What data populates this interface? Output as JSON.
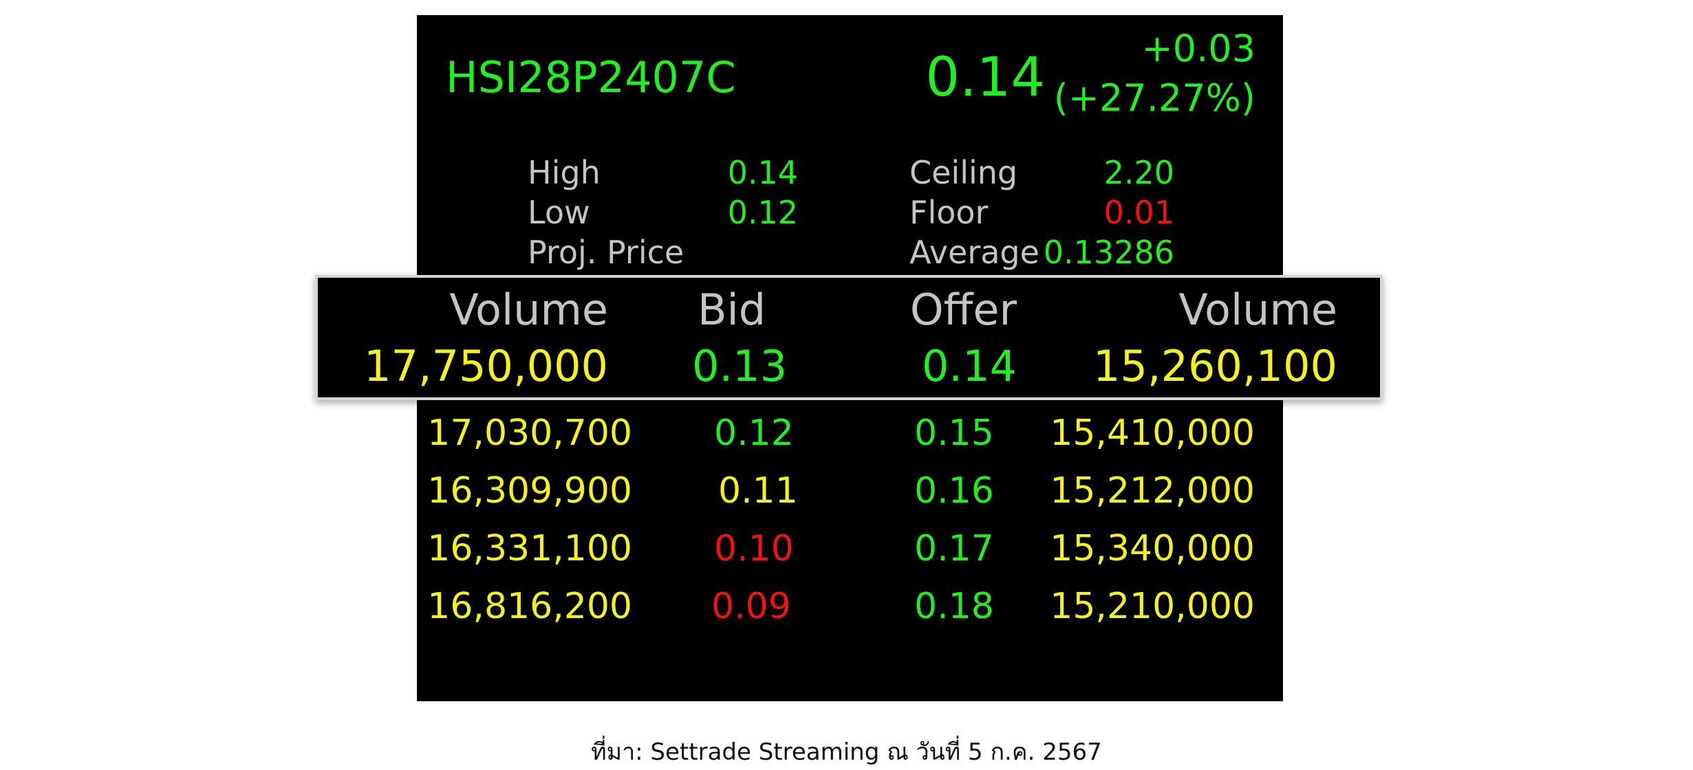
{
  "quote": {
    "symbol": "HSI28P2407C",
    "last": "0.14",
    "change": "+0.03",
    "change_pct": "(+27.27%)"
  },
  "stats": {
    "high_label": "High",
    "high_value": "0.14",
    "low_label": "Low",
    "low_value": "0.12",
    "proj_label": "Proj. Price",
    "ceiling_label": "Ceiling",
    "ceiling_value": "2.20",
    "floor_label": "Floor",
    "floor_value": "0.01",
    "average_label": "Average",
    "average_value": "0.13286"
  },
  "orderbook": {
    "headers": {
      "bid_volume": "Volume",
      "bid": "Bid",
      "offer": "Offer",
      "offer_volume": "Volume"
    },
    "best": {
      "bid_volume": "17,750,000",
      "bid": "0.13",
      "offer": "0.14",
      "offer_volume": "15,260,100"
    },
    "rows": [
      {
        "bid_volume": "17,030,700",
        "bid": "0.12",
        "offer": "0.15",
        "offer_volume": "15,410,000"
      },
      {
        "bid_volume": "16,309,900",
        "bid": "0.11",
        "offer": "0.16",
        "offer_volume": "15,212,000"
      },
      {
        "bid_volume": "16,331,100",
        "bid": "0.10",
        "offer": "0.17",
        "offer_volume": "15,340,000"
      },
      {
        "bid_volume": "16,816,200",
        "bid": "0.09",
        "offer": "0.18",
        "offer_volume": "15,210,000"
      }
    ]
  },
  "colors": {
    "up": "#22ee22",
    "unchanged": "#f2f21e",
    "down": "#ee1414",
    "label": "#c4c4c4",
    "background": "#000000"
  },
  "caption": "ที่มา: Settrade Streaming ณ วันที่ 5 ก.ค. 2567"
}
